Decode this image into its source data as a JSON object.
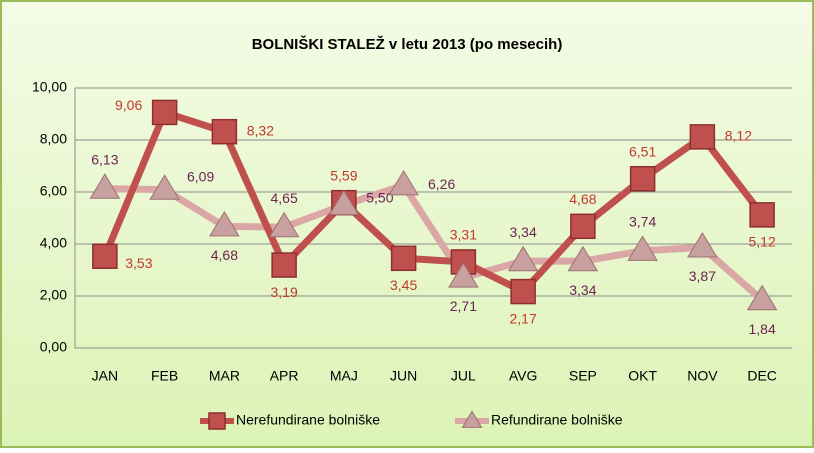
{
  "chart_data": {
    "type": "line",
    "title": "BOLNIŠKI STALEŽ v letu 2013 (po mesecih)",
    "categories": [
      "JAN",
      "FEB",
      "MAR",
      "APR",
      "MAJ",
      "JUN",
      "JUL",
      "AVG",
      "SEP",
      "OKT",
      "NOV",
      "DEC"
    ],
    "series": [
      {
        "name": "Nerefundirane bolniške",
        "color": "#c0504d",
        "marker": "square",
        "values": [
          3.53,
          9.06,
          8.32,
          3.19,
          5.59,
          3.45,
          3.31,
          2.17,
          4.68,
          6.51,
          8.12,
          5.12
        ],
        "value_labels": [
          "3,53",
          "9,06",
          "8,32",
          "3,19",
          "5,59",
          "3,45",
          "3,31",
          "2,17",
          "4,68",
          "6,51",
          "8,12",
          "5,12"
        ]
      },
      {
        "name": "Refundirane bolniške",
        "color": "#dba7a6",
        "marker": "triangle",
        "values": [
          6.13,
          6.09,
          4.68,
          4.65,
          5.5,
          6.26,
          2.71,
          3.34,
          3.34,
          3.74,
          3.87,
          1.84
        ],
        "value_labels": [
          "6,13",
          "6,09",
          "4,68",
          "4,65",
          "5,50",
          "6,26",
          "2,71",
          "3,34",
          "3,34",
          "3,74",
          "3,87",
          "1,84"
        ]
      }
    ],
    "ylim": [
      0,
      10
    ],
    "yticks": [
      {
        "value": 0,
        "label": "0,00"
      },
      {
        "value": 2,
        "label": "2,00"
      },
      {
        "value": 4,
        "label": "4,00"
      },
      {
        "value": 6,
        "label": "6,00"
      },
      {
        "value": 8,
        "label": "8,00"
      },
      {
        "value": 10,
        "label": "10,00"
      }
    ],
    "grid": true,
    "legend": "bottom"
  }
}
